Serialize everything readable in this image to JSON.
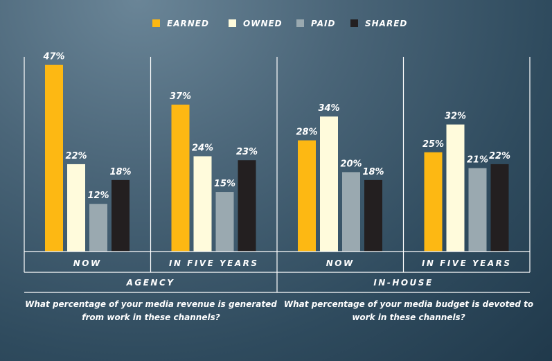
{
  "colors": {
    "earned": "#FDB813",
    "owned": "#FFFBDC",
    "paid": "#9AA9B0",
    "shared": "#231F20",
    "axis": "#FFFFFF"
  },
  "chart_data": {
    "type": "bar",
    "legend": [
      {
        "key": "earned",
        "label": "EARNED"
      },
      {
        "key": "owned",
        "label": "OWNED"
      },
      {
        "key": "paid",
        "label": "PAID"
      },
      {
        "key": "shared",
        "label": "SHARED"
      }
    ],
    "legend_position": "top-center",
    "ylim": [
      0,
      50
    ],
    "value_suffix": "%",
    "groups": [
      {
        "category": "NOW",
        "parent": "AGENCY",
        "values": [
          47,
          22,
          12,
          18
        ]
      },
      {
        "category": "IN FIVE YEARS",
        "parent": "AGENCY",
        "values": [
          37,
          24,
          15,
          23
        ]
      },
      {
        "category": "NOW",
        "parent": "IN-HOUSE",
        "values": [
          28,
          34,
          20,
          18
        ]
      },
      {
        "category": "IN FIVE YEARS",
        "parent": "IN-HOUSE",
        "values": [
          25,
          32,
          21,
          22
        ]
      }
    ],
    "parents": [
      "AGENCY",
      "IN-HOUSE"
    ],
    "questions": [
      "What percentage of your media revenue is generated from work in these channels?",
      "What percentage of your media budget is devoted to work in these channels?"
    ]
  }
}
